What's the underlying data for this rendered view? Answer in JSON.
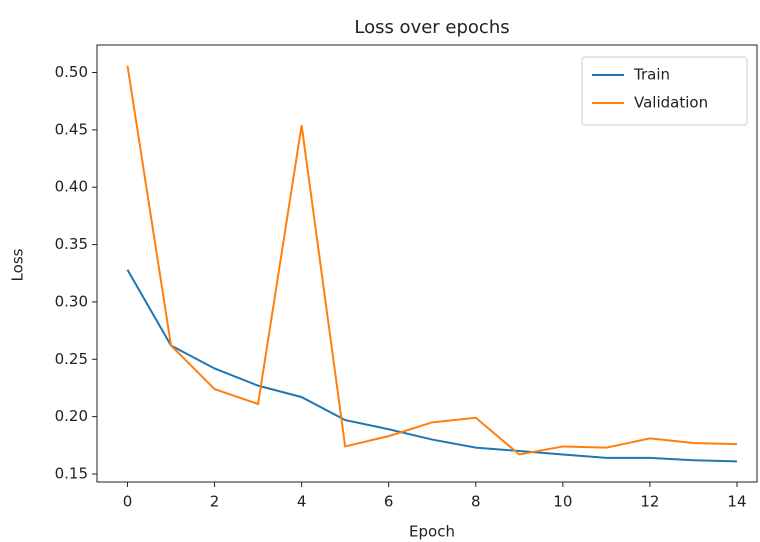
{
  "chart_data": {
    "type": "line",
    "title": "Loss over epochs",
    "x_label": "Epoch",
    "y_label": "Loss",
    "x": [
      0,
      1,
      2,
      3,
      4,
      5,
      6,
      7,
      8,
      9,
      10,
      11,
      12,
      13,
      14
    ],
    "series": [
      {
        "name": "Train",
        "color": "#1f77b4",
        "values": [
          0.328,
          0.262,
          0.242,
          0.227,
          0.217,
          0.197,
          0.189,
          0.18,
          0.173,
          0.17,
          0.167,
          0.164,
          0.164,
          0.162,
          0.161
        ]
      },
      {
        "name": "Validation",
        "color": "#ff7f0e",
        "values": [
          0.506,
          0.262,
          0.224,
          0.211,
          0.454,
          0.174,
          0.183,
          0.195,
          0.199,
          0.167,
          0.174,
          0.173,
          0.181,
          0.177,
          0.176
        ]
      }
    ],
    "xlim": [
      -0.7,
      14.46
    ],
    "ylim": [
      0.143,
      0.524
    ],
    "xticks": [
      0,
      2,
      4,
      6,
      8,
      10,
      12,
      14
    ],
    "yticks": [
      0.15,
      {
        "value": 0.2,
        "label": "0.20"
      },
      0.25,
      {
        "value": 0.3,
        "label": "0.30"
      },
      0.35,
      {
        "value": 0.4,
        "label": "0.40"
      },
      0.45,
      {
        "value": 0.5,
        "label": "0.50"
      }
    ],
    "legend": "upper right"
  }
}
